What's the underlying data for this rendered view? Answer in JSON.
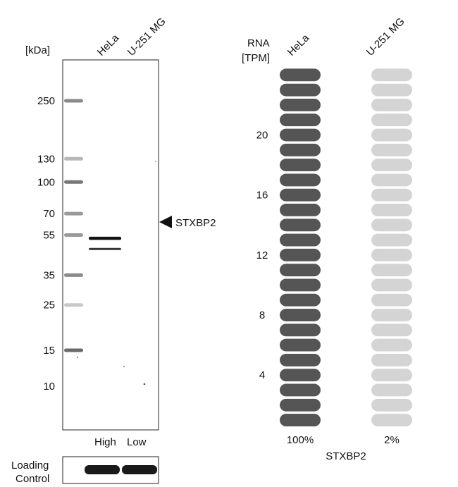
{
  "chart_data": [
    {
      "type": "western_blot",
      "unit_label": "[kDa]",
      "lanes": [
        "HeLa",
        "U-251 MG"
      ],
      "lane_levels": [
        "High",
        "Low"
      ],
      "marker_ladder_kda": [
        250,
        130,
        100,
        70,
        55,
        35,
        25,
        15,
        10
      ],
      "target_arrow_label": "STXBP2",
      "bands": [
        {
          "lane": "HeLa",
          "kda": 53,
          "strength": "strong"
        },
        {
          "lane": "HeLa",
          "kda": 47,
          "strength": "moderate"
        }
      ],
      "loading_control_label": [
        "Loading",
        "Control"
      ],
      "loading_control_bands": [
        {
          "lane": "HeLa",
          "strength": "strong"
        },
        {
          "lane": "U-251 MG",
          "strength": "strong"
        }
      ]
    },
    {
      "type": "bar",
      "ylabel": [
        "RNA",
        "[TPM]"
      ],
      "yticks": [
        4,
        8,
        12,
        16,
        20
      ],
      "segments_per_column": 24,
      "segment_value": 1,
      "categories": [
        "HeLa",
        "U-251 MG"
      ],
      "values_percent": [
        100,
        2
      ],
      "value_labels": [
        "100%",
        "2%"
      ],
      "colors": {
        "filled": "#555555",
        "empty": "#d4d4d4"
      },
      "xlabel": "STXBP2"
    }
  ]
}
